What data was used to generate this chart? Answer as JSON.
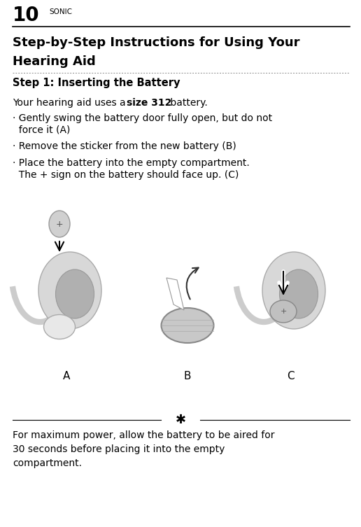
{
  "page_number": "10",
  "brand": "SONIC",
  "title_line1": "Step-by-Step Instructions for Using Your",
  "title_line2": "Hearing Aid",
  "section_title": "Step 1: Inserting the Battery",
  "body_intro_normal": "Your hearing aid uses a ",
  "body_intro_bold": "size 312",
  "body_intro_end": " battery.",
  "bullet1_line1": "· Gently swing the battery door fully open, but do not",
  "bullet1_line2": "  force it (A)",
  "bullet2": "· Remove the sticker from the new battery (B)",
  "bullet3_line1": "· Place the battery into the empty compartment.",
  "bullet3_line2": "  The + sign on the battery should face up. (C)",
  "labels": [
    "A",
    "B",
    "C"
  ],
  "tip_symbol": "✱",
  "tip_text_line1": "For maximum power, allow the battery to be aired for",
  "tip_text_line2": "30 seconds before placing it into the empty",
  "tip_text_line3": "compartment.",
  "bg_color": "#ffffff",
  "text_color": "#000000"
}
